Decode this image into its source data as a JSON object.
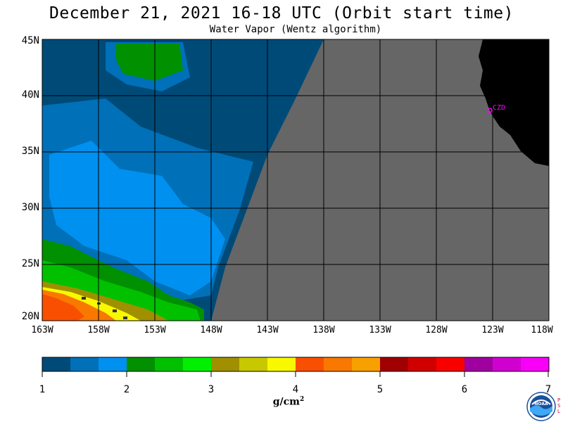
{
  "header": {
    "title": "December 21, 2021  16-18 UTC  (Orbit start time)",
    "subtitle": "Water Vapor (Wentz algorithm)"
  },
  "map": {
    "y_ticks": [
      "45N",
      "40N",
      "35N",
      "30N",
      "25N",
      "20N"
    ],
    "x_ticks": [
      "163W",
      "158W",
      "153W",
      "148W",
      "143W",
      "138W",
      "133W",
      "128W",
      "123W",
      "118W"
    ],
    "lat_range": [
      20,
      45
    ],
    "lon_range": [
      -163,
      -118
    ],
    "city_label": "CZD",
    "nodata_color": "#666666",
    "land_color": "#000000"
  },
  "colorbar": {
    "colors": [
      "#004a78",
      "#0070b8",
      "#0090f0",
      "#009000",
      "#00c000",
      "#00f000",
      "#a09000",
      "#c8c800",
      "#f8f800",
      "#f85000",
      "#f87800",
      "#f8a000",
      "#a00000",
      "#d00000",
      "#f80000",
      "#a000a0",
      "#d000d0",
      "#f800f8"
    ],
    "ticks": [
      "1",
      "2",
      "3",
      "4",
      "5",
      "6",
      "7"
    ],
    "unit": "g/cm",
    "unit_exp": "2"
  },
  "logo": {
    "text": "NOAA",
    "side_text": [
      "P",
      "S",
      "L"
    ]
  }
}
